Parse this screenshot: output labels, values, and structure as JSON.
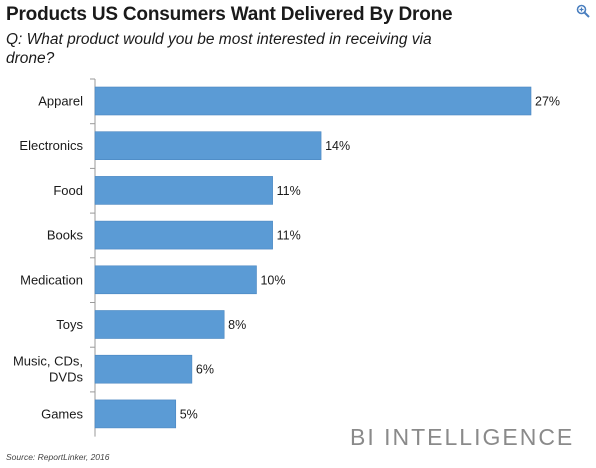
{
  "header": {
    "title": "Products US Consumers Want Delivered By Drone",
    "subtitle": "Q: What product would you be most interested in receiving via drone?"
  },
  "footer": {
    "brand": "BI INTELLIGENCE",
    "source": "Source: ReportLinker, 2016"
  },
  "icons": {
    "zoom": "zoom-in-icon"
  },
  "colors": {
    "bar": "#5b9bd5",
    "bar_border": "#4a86c0"
  },
  "chart_data": {
    "type": "bar",
    "orientation": "horizontal",
    "categories": [
      "Apparel",
      "Electronics",
      "Food",
      "Books",
      "Medication",
      "Toys",
      "Music, CDs, DVDs",
      "Games"
    ],
    "category_lines": [
      [
        "Apparel"
      ],
      [
        "Electronics"
      ],
      [
        "Food"
      ],
      [
        "Books"
      ],
      [
        "Medication"
      ],
      [
        "Toys"
      ],
      [
        "Music, CDs,",
        "DVDs"
      ],
      [
        "Games"
      ]
    ],
    "values": [
      27,
      14,
      11,
      11,
      10,
      8,
      6,
      5
    ],
    "value_labels": [
      "27%",
      "14%",
      "11%",
      "11%",
      "10%",
      "8%",
      "6%",
      "5%"
    ],
    "xlim": [
      0,
      27
    ],
    "grid": false,
    "legend": "none"
  }
}
